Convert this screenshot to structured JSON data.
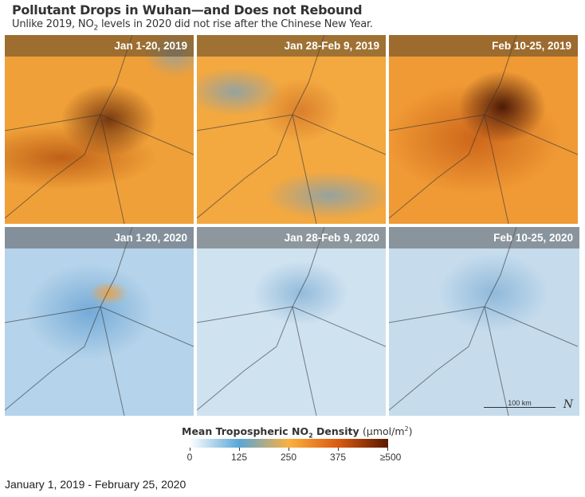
{
  "title": "Pollutant Drops in Wuhan—and Does not Rebound",
  "subtitle": {
    "pre": "Unlike 2019, NO",
    "sub": "2",
    "post": " levels in 2020 did not rise after the Chinese New Year."
  },
  "panels": [
    {
      "label": "Jan 1-20, 2019"
    },
    {
      "label": "Jan 28-Feb 9, 2019"
    },
    {
      "label": "Feb 10-25, 2019"
    },
    {
      "label": "Jan 1-20, 2020"
    },
    {
      "label": "Jan 28-Feb 9, 2020"
    },
    {
      "label": "Feb 10-25, 2020"
    }
  ],
  "scale_label": "100 km",
  "north_label": "N",
  "legend": {
    "title_pre": "Mean Tropospheric NO",
    "title_sub": "2",
    "title_post": " Density",
    "units_pre": "(μmol/m",
    "units_sup": "2",
    "units_post": ")",
    "ticks": [
      "0",
      "125",
      "250",
      "375",
      "≥500"
    ],
    "colors": [
      "#ffffff",
      "#5aa6d6",
      "#fbb040",
      "#d95a10",
      "#5a1800"
    ]
  },
  "footer": "January 1, 2019 - February 25, 2020"
}
